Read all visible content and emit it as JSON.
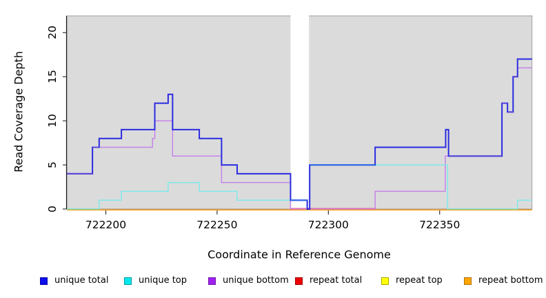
{
  "chart_data": {
    "type": "line",
    "subtype": "step",
    "title": "",
    "xlabel": "Coordinate in Reference Genome",
    "ylabel": "Read Coverage Depth",
    "xlim": [
      722182.5,
      722391.5
    ],
    "ylim": [
      0,
      21.9
    ],
    "x_ticks": [
      722200,
      722250,
      722300,
      722350
    ],
    "y_ticks": [
      0,
      5,
      10,
      15,
      20
    ],
    "grid": false,
    "legend_position": "bottom",
    "panel_background": "#DBDBDB",
    "panel_border": "#9E9E9E",
    "masked_region": {
      "start": 722283,
      "end": 722291.3
    },
    "series": [
      {
        "name": "unique total",
        "color": "#2B2BE1",
        "steps": [
          [
            722182.5,
            4
          ],
          [
            722194,
            7
          ],
          [
            722197,
            8
          ],
          [
            722207,
            9
          ],
          [
            722222,
            12
          ],
          [
            722228,
            13
          ],
          [
            722230,
            9
          ],
          [
            722242,
            8
          ],
          [
            722252,
            5
          ],
          [
            722259,
            4
          ],
          [
            722283,
            1
          ],
          [
            722290.5,
            0
          ],
          [
            722291.6,
            5
          ],
          [
            722321,
            7
          ],
          [
            722352.7,
            9
          ],
          [
            722354,
            6
          ],
          [
            722378,
            12
          ],
          [
            722380.5,
            11
          ],
          [
            722383,
            15
          ],
          [
            722385,
            17
          ]
        ]
      },
      {
        "name": "unique top",
        "color": "#7FE9E9",
        "steps": [
          [
            722182.5,
            0
          ],
          [
            722197,
            1
          ],
          [
            722207,
            2
          ],
          [
            722228,
            3
          ],
          [
            722242,
            2
          ],
          [
            722259,
            1
          ],
          [
            722290.5,
            0
          ],
          [
            722291.6,
            5
          ],
          [
            722353.5,
            0
          ],
          [
            722385,
            1
          ]
        ]
      },
      {
        "name": "unique bottom",
        "color": "#C583E8",
        "steps": [
          [
            722182.5,
            4
          ],
          [
            722194,
            7
          ],
          [
            722221,
            8
          ],
          [
            722222,
            10
          ],
          [
            722230,
            6
          ],
          [
            722252,
            3
          ],
          [
            722283,
            0
          ],
          [
            722321,
            2
          ],
          [
            722352.5,
            6
          ],
          [
            722378,
            12
          ],
          [
            722380.5,
            11
          ],
          [
            722383,
            15
          ],
          [
            722385,
            16
          ]
        ]
      },
      {
        "name": "repeat total",
        "color": "#DC1400",
        "steps": [
          [
            722182.5,
            0
          ]
        ]
      },
      {
        "name": "repeat top",
        "color": "#FFFF00",
        "steps": [
          [
            722182.5,
            0
          ]
        ]
      },
      {
        "name": "repeat bottom",
        "color": "#FF9E1A",
        "steps": [
          [
            722182.5,
            0
          ]
        ]
      }
    ],
    "legend": [
      {
        "label": "unique total",
        "fill": "#0D0DEE",
        "border": "#0000A8"
      },
      {
        "label": "unique top",
        "fill": "#00E8EE",
        "border": "#009AA0"
      },
      {
        "label": "unique bottom",
        "fill": "#A020F0",
        "border": "#6F17A6"
      },
      {
        "label": "repeat total",
        "fill": "#EE0000",
        "border": "#9E0000"
      },
      {
        "label": "repeat top",
        "fill": "#FFFF00",
        "border": "#ABAB00"
      },
      {
        "label": "repeat bottom",
        "fill": "#FFA500",
        "border": "#AD7100"
      }
    ],
    "overlap_colors": {
      "blue_over_purple": "#5A49D8",
      "blue_over_cyan": "#2E6BE8",
      "cyan_zero_mint": "#8CD6A4",
      "purple_zero_pink": "#DC72B2"
    }
  }
}
